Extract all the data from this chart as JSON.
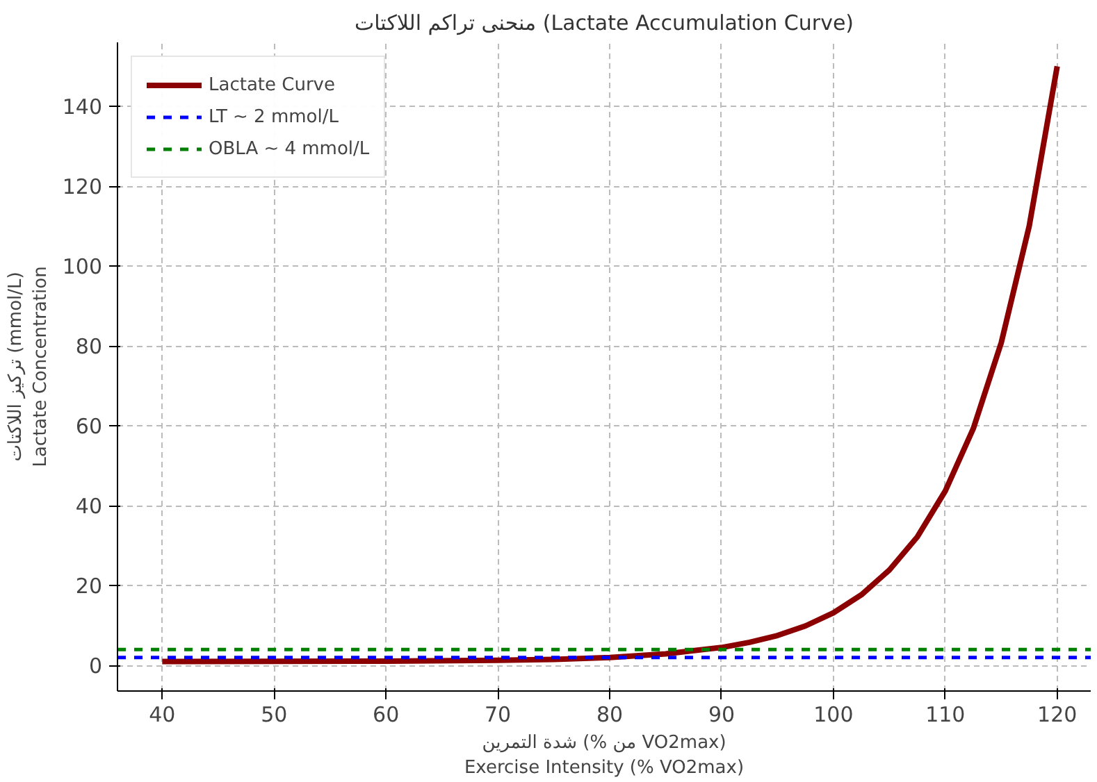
{
  "chart_data": {
    "type": "line",
    "title": "منحنى تراكم اللاكتات (Lactate Accumulation Curve)",
    "xlabel": "شدة التمرين (% من VO2max)\nExercise Intensity (% VO2max)",
    "ylabel": "تركيز اللاكتات (mmol/L)\nLactate Concentration",
    "series": [
      {
        "name": "Lactate Curve",
        "color": "#8b0000",
        "x": [
          40,
          50,
          60,
          70,
          75,
          80,
          85,
          90,
          92.5,
          95,
          97.5,
          100,
          102.5,
          105,
          107.5,
          110,
          112.5,
          115,
          117.5,
          120
        ],
        "values": [
          1.0,
          1.02,
          1.08,
          1.3,
          1.5,
          2.0,
          2.9,
          4.5,
          5.8,
          7.5,
          9.9,
          13.2,
          17.7,
          23.9,
          32.2,
          43.7,
          59.3,
          80.8,
          110,
          150
        ]
      }
    ],
    "ref_lines": [
      {
        "axis": "y",
        "value": 2,
        "label": "LT ~ 2 mmol/L",
        "color": "#0000ff",
        "line_style": "dashed"
      },
      {
        "axis": "y",
        "value": 4,
        "label": "OBLA ~ 4 mmol/L",
        "color": "#008000",
        "line_style": "dashed"
      }
    ],
    "xlim": [
      36,
      123
    ],
    "ylim": [
      -6.4,
      156
    ],
    "xticks": [
      40,
      50,
      60,
      70,
      80,
      90,
      100,
      110,
      120
    ],
    "yticks": [
      0,
      20,
      40,
      60,
      80,
      100,
      120,
      140
    ],
    "grid": true,
    "legend": "top left",
    "marker": "none",
    "line_style": "solid"
  }
}
